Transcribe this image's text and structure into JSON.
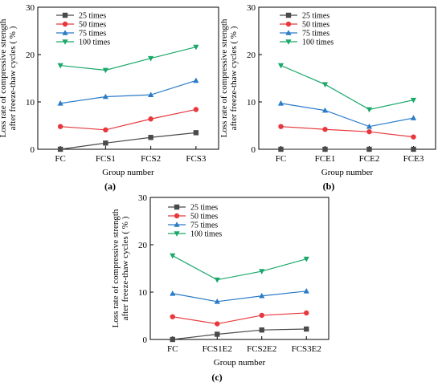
{
  "colors": {
    "25 times": "#4a4a4a",
    "50 times": "#e8383d",
    "75 times": "#2a7bc8",
    "100 times": "#1aa86a"
  },
  "markers": {
    "25 times": "square",
    "50 times": "circle",
    "75 times": "triangle-up",
    "100 times": "triangle-down"
  },
  "chart_data": [
    {
      "type": "line",
      "panel": "(a)",
      "categories": [
        "FC",
        "FCS1",
        "FCS2",
        "FCS3"
      ],
      "xlabel": "Group number",
      "ylabel": "Loss rate of compressive strength after freeze-thaw cycles ( % )",
      "ylabel_lines": [
        "Loss rate of compressive strength",
        "after freeze-thaw cycles ( % )"
      ],
      "ylim": [
        0,
        30
      ],
      "yticks": [
        0,
        10,
        20,
        30
      ],
      "legend_position": "top-left",
      "series": [
        {
          "name": "25  times",
          "key": "25 times",
          "values": [
            0.0,
            1.3,
            2.5,
            3.5
          ]
        },
        {
          "name": "50  times",
          "key": "50 times",
          "values": [
            4.8,
            4.1,
            6.4,
            8.4
          ]
        },
        {
          "name": "75  times",
          "key": "75 times",
          "values": [
            9.7,
            11.1,
            11.5,
            14.5
          ]
        },
        {
          "name": "100 times",
          "key": "100 times",
          "values": [
            17.7,
            16.7,
            19.2,
            21.6
          ]
        }
      ]
    },
    {
      "type": "line",
      "panel": "(b)",
      "categories": [
        "FC",
        "FCE1",
        "FCE2",
        "FCE3"
      ],
      "xlabel": "Group number",
      "ylabel": "Loss rate of compressive strength after freeze-thaw cycles ( % )",
      "ylabel_lines": [
        "Loss rate of compressive strength",
        "after freeze-thaw cycles ( % )"
      ],
      "ylim": [
        0,
        30
      ],
      "yticks": [
        0,
        10,
        20,
        30
      ],
      "legend_position": "top-right",
      "series": [
        {
          "name": "25  times",
          "key": "25 times",
          "values": [
            0.0,
            0.0,
            0.0,
            0.0
          ]
        },
        {
          "name": "50  times",
          "key": "50 times",
          "values": [
            4.8,
            4.2,
            3.7,
            2.6
          ]
        },
        {
          "name": "75  times",
          "key": "75 times",
          "values": [
            9.7,
            8.2,
            4.8,
            6.6
          ]
        },
        {
          "name": "100 times",
          "key": "100 times",
          "values": [
            17.7,
            13.7,
            8.4,
            10.4
          ]
        }
      ]
    },
    {
      "type": "line",
      "panel": "(c)",
      "categories": [
        "FC",
        "FCS1E2",
        "FCS2E2",
        "FCS3E2"
      ],
      "xlabel": "Group number",
      "ylabel": "Loss rate of compressive strength after freeze-thaw cycles ( % )",
      "ylabel_lines": [
        "Loss rate of compressive strength",
        "after freeze-thaw cycles ( % )"
      ],
      "ylim": [
        0,
        30
      ],
      "yticks": [
        0,
        10,
        20,
        30
      ],
      "legend_position": "top-left",
      "series": [
        {
          "name": "25  times",
          "key": "25 times",
          "values": [
            0.0,
            1.1,
            2.0,
            2.2
          ]
        },
        {
          "name": "50  times",
          "key": "50 times",
          "values": [
            4.8,
            3.3,
            5.1,
            5.6
          ]
        },
        {
          "name": "75  times",
          "key": "75 times",
          "values": [
            9.7,
            8.0,
            9.2,
            10.2
          ]
        },
        {
          "name": "100 times",
          "key": "100 times",
          "values": [
            17.7,
            12.6,
            14.4,
            17.0
          ]
        }
      ]
    }
  ]
}
